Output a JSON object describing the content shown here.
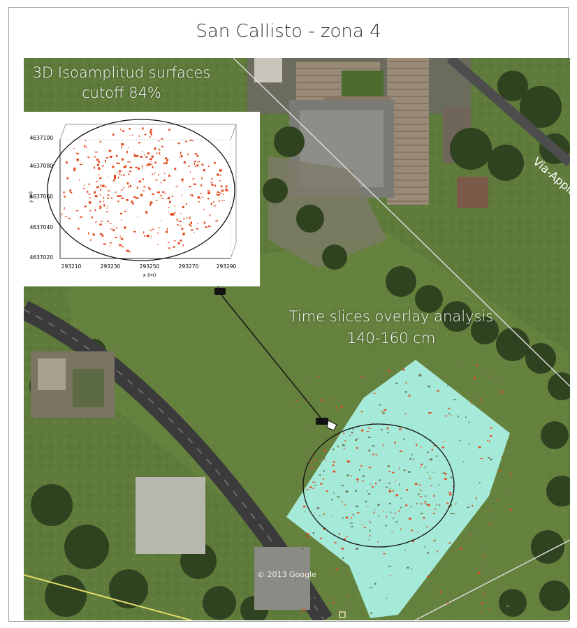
{
  "title": "San Callisto - zona 4",
  "labels": {
    "isosurface_line1": "3D Isoamplitud surfaces",
    "isosurface_line2": "cutoff 84%",
    "timeslice_line1": "Time slices overlay analysis",
    "timeslice_line2": "140-160 cm"
  },
  "map": {
    "road_label": "Via-Appia",
    "copyright": "© 2013 Google"
  },
  "inset_plot": {
    "y_ticks": [
      "4637100",
      "4637080",
      "4637060",
      "4637040",
      "4637020"
    ],
    "x_ticks": [
      "293210",
      "293230",
      "293250",
      "293270",
      "293290"
    ],
    "x_label": "x (m)",
    "y_label": "y (m)"
  },
  "colors": {
    "grass": "#5f7a3c",
    "anomaly": "#e4471a",
    "timeslice_bg": "#a9efe0",
    "road": "#3d3d3d"
  }
}
